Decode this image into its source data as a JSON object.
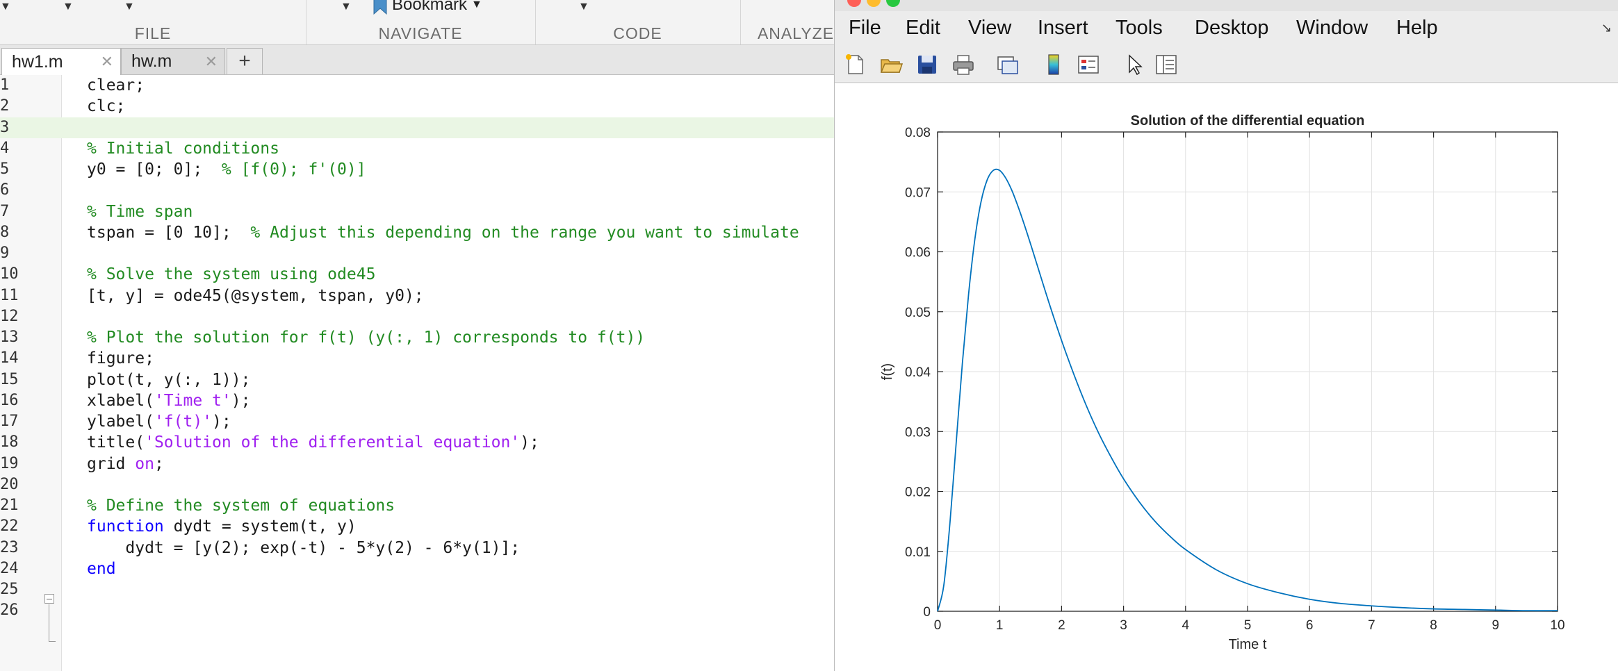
{
  "toolstrip": {
    "sections": [
      {
        "label": "FILE"
      },
      {
        "label": "NAVIGATE"
      },
      {
        "label": "CODE"
      },
      {
        "label": "ANALYZE"
      }
    ],
    "bookmark_label": "Bookmark"
  },
  "editor": {
    "tabs": [
      {
        "label": "hw1.m",
        "active": true
      },
      {
        "label": "hw.m",
        "active": false
      }
    ],
    "add_tab_label": "+",
    "current_line": 3,
    "lines": [
      {
        "n": "1",
        "segments": [
          {
            "t": "clear;",
            "c": "plain"
          }
        ]
      },
      {
        "n": "2",
        "segments": [
          {
            "t": "clc;",
            "c": "plain"
          }
        ]
      },
      {
        "n": "3",
        "segments": []
      },
      {
        "n": "4",
        "segments": [
          {
            "t": "% Initial conditions",
            "c": "comment"
          }
        ]
      },
      {
        "n": "5",
        "segments": [
          {
            "t": "y0 = [0; 0];  ",
            "c": "plain"
          },
          {
            "t": "% [f(0); f'(0)]",
            "c": "comment"
          }
        ]
      },
      {
        "n": "6",
        "segments": []
      },
      {
        "n": "7",
        "segments": [
          {
            "t": "% Time span",
            "c": "comment"
          }
        ]
      },
      {
        "n": "8",
        "segments": [
          {
            "t": "tspan = [0 10];  ",
            "c": "plain"
          },
          {
            "t": "% Adjust this depending on the range you want to simulate",
            "c": "comment"
          }
        ]
      },
      {
        "n": "9",
        "segments": []
      },
      {
        "n": "10",
        "segments": [
          {
            "t": "% Solve the system using ode45",
            "c": "comment"
          }
        ]
      },
      {
        "n": "11",
        "segments": [
          {
            "t": "[t, y] = ode45(@system, tspan, y0);",
            "c": "plain"
          }
        ]
      },
      {
        "n": "12",
        "segments": []
      },
      {
        "n": "13",
        "segments": [
          {
            "t": "% Plot the solution for f(t) (y(:, 1) corresponds to f(t))",
            "c": "comment"
          }
        ]
      },
      {
        "n": "14",
        "segments": [
          {
            "t": "figure;",
            "c": "plain"
          }
        ]
      },
      {
        "n": "15",
        "segments": [
          {
            "t": "plot(t, y(:, 1));",
            "c": "plain"
          }
        ]
      },
      {
        "n": "16",
        "segments": [
          {
            "t": "xlabel(",
            "c": "plain"
          },
          {
            "t": "'Time t'",
            "c": "string"
          },
          {
            "t": ");",
            "c": "plain"
          }
        ]
      },
      {
        "n": "17",
        "segments": [
          {
            "t": "ylabel(",
            "c": "plain"
          },
          {
            "t": "'f(t)'",
            "c": "string"
          },
          {
            "t": ");",
            "c": "plain"
          }
        ]
      },
      {
        "n": "18",
        "segments": [
          {
            "t": "title(",
            "c": "plain"
          },
          {
            "t": "'Solution of the differential equation'",
            "c": "string"
          },
          {
            "t": ");",
            "c": "plain"
          }
        ]
      },
      {
        "n": "19",
        "segments": [
          {
            "t": "grid ",
            "c": "plain"
          },
          {
            "t": "on",
            "c": "string"
          },
          {
            "t": ";",
            "c": "plain"
          }
        ]
      },
      {
        "n": "20",
        "segments": []
      },
      {
        "n": "21",
        "segments": [
          {
            "t": "% Define the system of equations",
            "c": "comment"
          }
        ]
      },
      {
        "n": "22",
        "segments": [
          {
            "t": "function",
            "c": "keyword"
          },
          {
            "t": " dydt = system(t, y)",
            "c": "plain"
          }
        ]
      },
      {
        "n": "23",
        "segments": [
          {
            "t": "    dydt = [y(2); exp(-t) - 5*y(2) - 6*y(1)];",
            "c": "plain"
          }
        ]
      },
      {
        "n": "24",
        "segments": [
          {
            "t": "end",
            "c": "keyword"
          }
        ]
      },
      {
        "n": "25",
        "segments": []
      },
      {
        "n": "26",
        "segments": []
      }
    ]
  },
  "figure": {
    "menu": [
      "File",
      "Edit",
      "View",
      "Insert",
      "Tools",
      "Desktop",
      "Window",
      "Help"
    ],
    "toolbar_icons": [
      "new-figure-icon",
      "open-file-icon",
      "save-icon",
      "print-icon",
      "link-plot-icon",
      "colorbar-icon",
      "legend-icon",
      "pointer-icon",
      "property-editor-icon"
    ]
  },
  "colors": {
    "comment": "#228b22",
    "keyword": "#0e00ff",
    "string": "#a020f0",
    "current_line": "#eaf6e4",
    "plot_line": "#0072bd"
  },
  "chart_data": {
    "type": "line",
    "title": "Solution of the differential equation",
    "xlabel": "Time t",
    "ylabel": "f(t)",
    "xlim": [
      0,
      10
    ],
    "ylim": [
      0,
      0.08
    ],
    "xticks": [
      0,
      1,
      2,
      3,
      4,
      5,
      6,
      7,
      8,
      9,
      10
    ],
    "yticks": [
      0,
      0.01,
      0.02,
      0.03,
      0.04,
      0.05,
      0.06,
      0.07,
      0.08
    ],
    "ytick_labels": [
      "0",
      "0.01",
      "0.02",
      "0.03",
      "0.04",
      "0.05",
      "0.06",
      "0.07",
      "0.08"
    ],
    "grid": true,
    "series": [
      {
        "x": [
          0,
          0.1,
          0.2,
          0.3,
          0.4,
          0.5,
          0.6,
          0.7,
          0.8,
          0.9,
          1.0,
          1.1,
          1.2,
          1.3,
          1.4,
          1.5,
          1.6,
          1.8,
          2.0,
          2.2,
          2.4,
          2.6,
          2.8,
          3.0,
          3.25,
          3.5,
          3.75,
          4.0,
          4.5,
          5.0,
          5.5,
          6.0,
          6.5,
          7.0,
          7.5,
          8.0,
          8.5,
          9.0,
          9.5,
          10.0
        ],
        "y": [
          0,
          0.0043,
          0.0148,
          0.0281,
          0.0414,
          0.0529,
          0.062,
          0.0683,
          0.072,
          0.0736,
          0.0736,
          0.0723,
          0.0702,
          0.0675,
          0.0645,
          0.0613,
          0.058,
          0.0514,
          0.0452,
          0.0395,
          0.0343,
          0.0297,
          0.0257,
          0.0221,
          0.0183,
          0.0151,
          0.0125,
          0.0103,
          0.0069,
          0.0046,
          0.0031,
          0.002,
          0.0013,
          0.0009,
          0.0006,
          0.0004,
          0.0003,
          0.0002,
          0.0001,
          0.0001
        ]
      }
    ]
  }
}
